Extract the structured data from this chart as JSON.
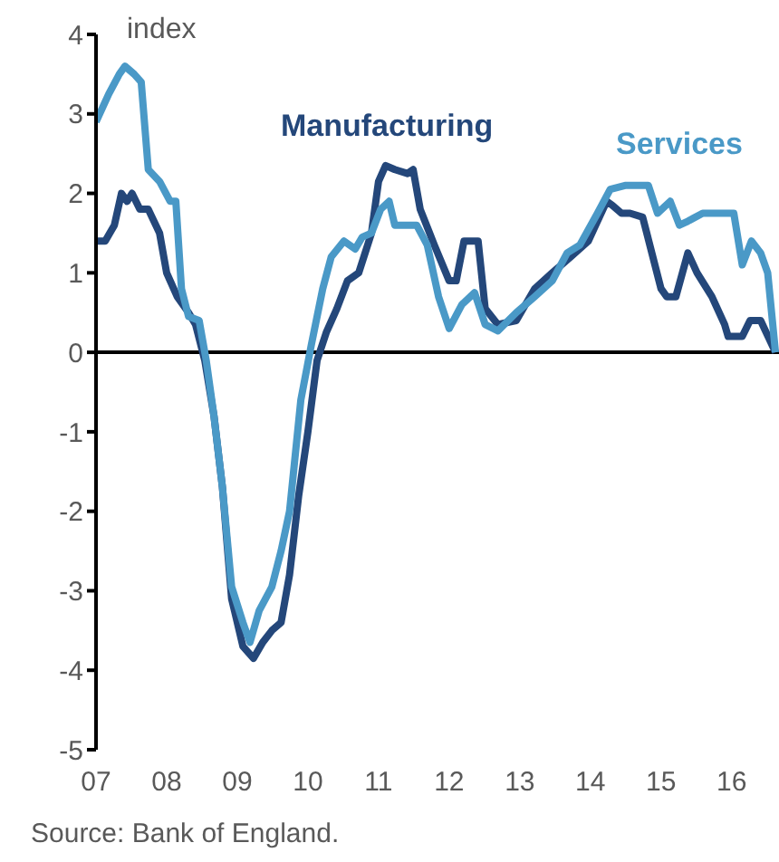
{
  "chart_data": {
    "type": "line",
    "annotations": [
      "index",
      "Source: Bank of England."
    ],
    "xlim": [
      2007,
      2016.67
    ],
    "xticks": [
      {
        "value": 2007,
        "label": "07"
      },
      {
        "value": 2008,
        "label": "08"
      },
      {
        "value": 2009,
        "label": "09"
      },
      {
        "value": 2010,
        "label": "10"
      },
      {
        "value": 2011,
        "label": "11"
      },
      {
        "value": 2012,
        "label": "12"
      },
      {
        "value": 2013,
        "label": "13"
      },
      {
        "value": 2014,
        "label": "14"
      },
      {
        "value": 2015,
        "label": "15"
      },
      {
        "value": 2016,
        "label": "16"
      }
    ],
    "ylim": [
      -5,
      4
    ],
    "yticks": [
      -5,
      -4,
      -3,
      -2,
      -1,
      0,
      1,
      2,
      3,
      4
    ],
    "marker": "none",
    "line_style": "solid",
    "ref_lines": [
      {
        "axis": "y",
        "value": 0,
        "color": "#000000"
      }
    ],
    "series": [
      {
        "name": "Manufacturing",
        "color": "#24477a",
        "x": [
          2007,
          2007.13,
          2007.26,
          2007.36,
          2007.44,
          2007.51,
          2007.62,
          2007.74,
          2007.9,
          2008,
          2008.15,
          2008.31,
          2008.41,
          2008.54,
          2008.67,
          2008.79,
          2008.92,
          2009.08,
          2009.23,
          2009.36,
          2009.49,
          2009.62,
          2009.74,
          2009.87,
          2010,
          2010.13,
          2010.26,
          2010.41,
          2010.56,
          2010.72,
          2010.9,
          2011,
          2011.1,
          2011.23,
          2011.41,
          2011.49,
          2011.59,
          2011.79,
          2012,
          2012.1,
          2012.21,
          2012.41,
          2012.51,
          2012.69,
          2012.95,
          2013.21,
          2013.46,
          2013.72,
          2013.97,
          2014.23,
          2014.31,
          2014.44,
          2014.56,
          2014.74,
          2014.87,
          2015,
          2015.08,
          2015.21,
          2015.38,
          2015.51,
          2015.72,
          2015.9,
          2015.95,
          2016.15,
          2016.26,
          2016.41,
          2016.62
        ],
        "values": [
          1.4,
          1.4,
          1.6,
          2.0,
          1.9,
          2.0,
          1.8,
          1.8,
          1.5,
          1.0,
          0.7,
          0.5,
          0.35,
          -0.1,
          -0.8,
          -1.7,
          -3.1,
          -3.7,
          -3.85,
          -3.65,
          -3.5,
          -3.4,
          -2.8,
          -1.8,
          -1.0,
          -0.1,
          0.25,
          0.55,
          0.9,
          1.0,
          1.5,
          2.15,
          2.35,
          2.3,
          2.25,
          2.3,
          1.8,
          1.35,
          0.9,
          0.9,
          1.4,
          1.4,
          0.55,
          0.35,
          0.4,
          0.8,
          1.0,
          1.2,
          1.4,
          1.9,
          1.85,
          1.75,
          1.75,
          1.7,
          1.25,
          0.8,
          0.7,
          0.7,
          1.25,
          1.0,
          0.7,
          0.35,
          0.2,
          0.2,
          0.4,
          0.4,
          0.0
        ]
      },
      {
        "name": "Services",
        "color": "#4a99c7",
        "x": [
          2007,
          2007.18,
          2007.33,
          2007.41,
          2007.54,
          2007.64,
          2007.74,
          2007.9,
          2008.05,
          2008.13,
          2008.21,
          2008.31,
          2008.46,
          2008.56,
          2008.67,
          2008.79,
          2008.92,
          2009.08,
          2009.18,
          2009.31,
          2009.49,
          2009.62,
          2009.74,
          2009.9,
          2010.05,
          2010.21,
          2010.33,
          2010.51,
          2010.67,
          2010.77,
          2010.9,
          2011.03,
          2011.15,
          2011.23,
          2011.54,
          2011.69,
          2011.85,
          2012,
          2012.18,
          2012.36,
          2012.51,
          2012.69,
          2012.95,
          2013.21,
          2013.46,
          2013.67,
          2013.85,
          2014.1,
          2014.28,
          2014.49,
          2014.82,
          2014.95,
          2015.13,
          2015.26,
          2015.38,
          2015.59,
          2016.03,
          2016.15,
          2016.28,
          2016.41,
          2016.51,
          2016.62
        ],
        "values": [
          2.9,
          3.25,
          3.5,
          3.6,
          3.5,
          3.4,
          2.3,
          2.15,
          1.9,
          1.9,
          0.8,
          0.45,
          0.4,
          -0.1,
          -0.8,
          -1.7,
          -2.95,
          -3.4,
          -3.65,
          -3.25,
          -2.95,
          -2.5,
          -2.0,
          -0.6,
          0.1,
          0.8,
          1.2,
          1.4,
          1.3,
          1.45,
          1.5,
          1.8,
          1.9,
          1.6,
          1.6,
          1.35,
          0.7,
          0.3,
          0.6,
          0.75,
          0.35,
          0.27,
          0.5,
          0.7,
          0.9,
          1.25,
          1.35,
          1.75,
          2.05,
          2.1,
          2.1,
          1.75,
          1.9,
          1.6,
          1.65,
          1.75,
          1.75,
          1.1,
          1.4,
          1.25,
          1.0,
          0.0
        ]
      }
    ]
  }
}
